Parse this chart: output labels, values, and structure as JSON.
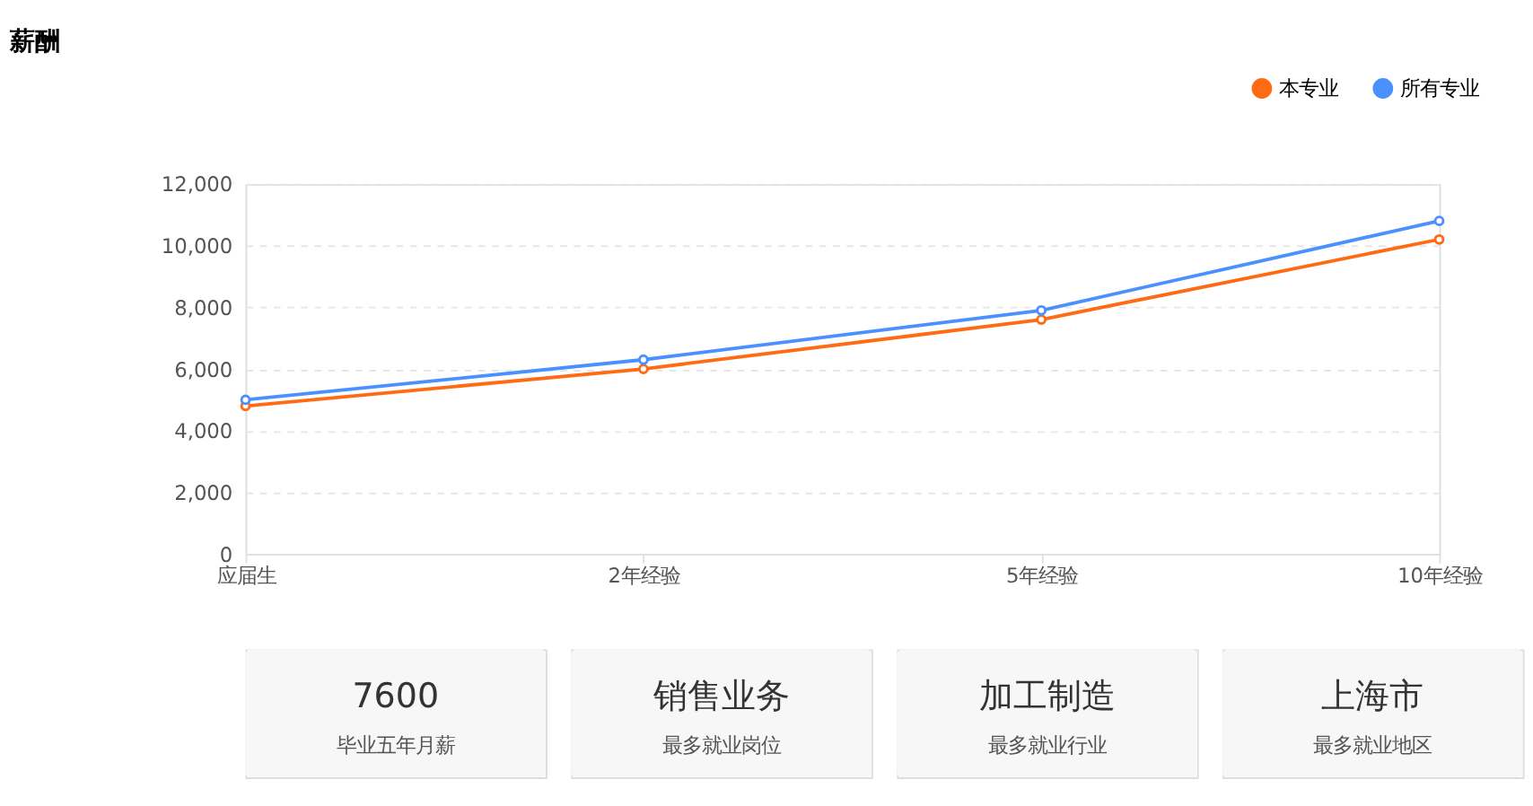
{
  "chart_data": [
    {
      "type": "line",
      "title": "薪酬",
      "categories": [
        "应届生",
        "2年经验",
        "5年经验",
        "10年经验"
      ],
      "series": [
        {
          "name": "本专业",
          "color": "#ff6a13",
          "values": [
            4800,
            6000,
            7600,
            10200
          ]
        },
        {
          "name": "所有专业",
          "color": "#4a90ff",
          "values": [
            5000,
            6300,
            7900,
            10800
          ]
        }
      ],
      "ylim": [
        0,
        12000
      ],
      "yticks": [
        0,
        {
          "value": 2000,
          "label": "2,000"
        },
        {
          "value": 4000,
          "label": "4,000"
        },
        {
          "value": 6000,
          "label": "6,000"
        },
        {
          "value": 8000,
          "label": "8,000"
        },
        {
          "value": 10000,
          "label": "10,000"
        },
        {
          "value": 12000,
          "label": "12,000"
        }
      ],
      "grid": "y",
      "legend": "top right",
      "marker": "circle",
      "line_style": "solid"
    },
    {
      "type": "other",
      "annotations": [
        "7600",
        "毕业五年月薪",
        "销售业务",
        "最多就业岗位",
        "加工制造",
        "最多就业行业",
        "上海市",
        "最多就业地区"
      ]
    }
  ]
}
